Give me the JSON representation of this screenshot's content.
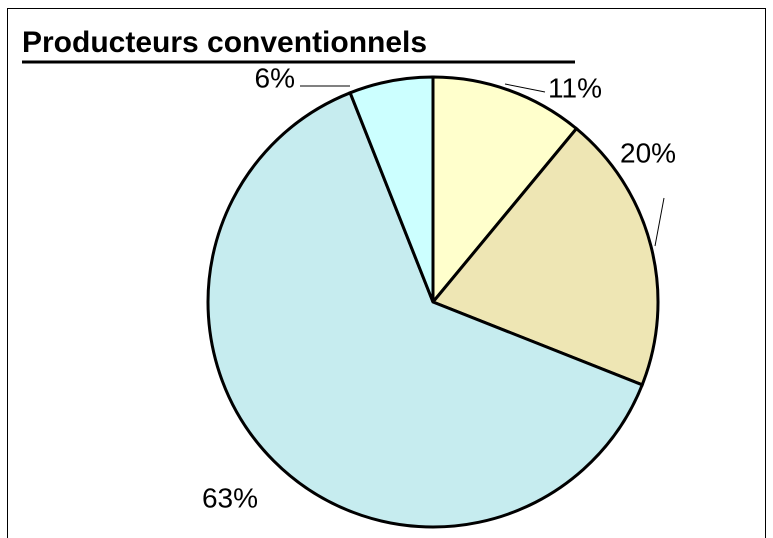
{
  "chart_data": {
    "type": "pie",
    "title": "Producteurs conventionnels",
    "categories": [
      null,
      null,
      null,
      null
    ],
    "values": [
      11,
      20,
      63,
      6
    ],
    "value_labels": [
      "11%",
      "20%",
      "63%",
      "6%"
    ],
    "colors": [
      "#ffffcc",
      "#eee6b4",
      "#c6ecef",
      "#ccffff"
    ]
  }
}
